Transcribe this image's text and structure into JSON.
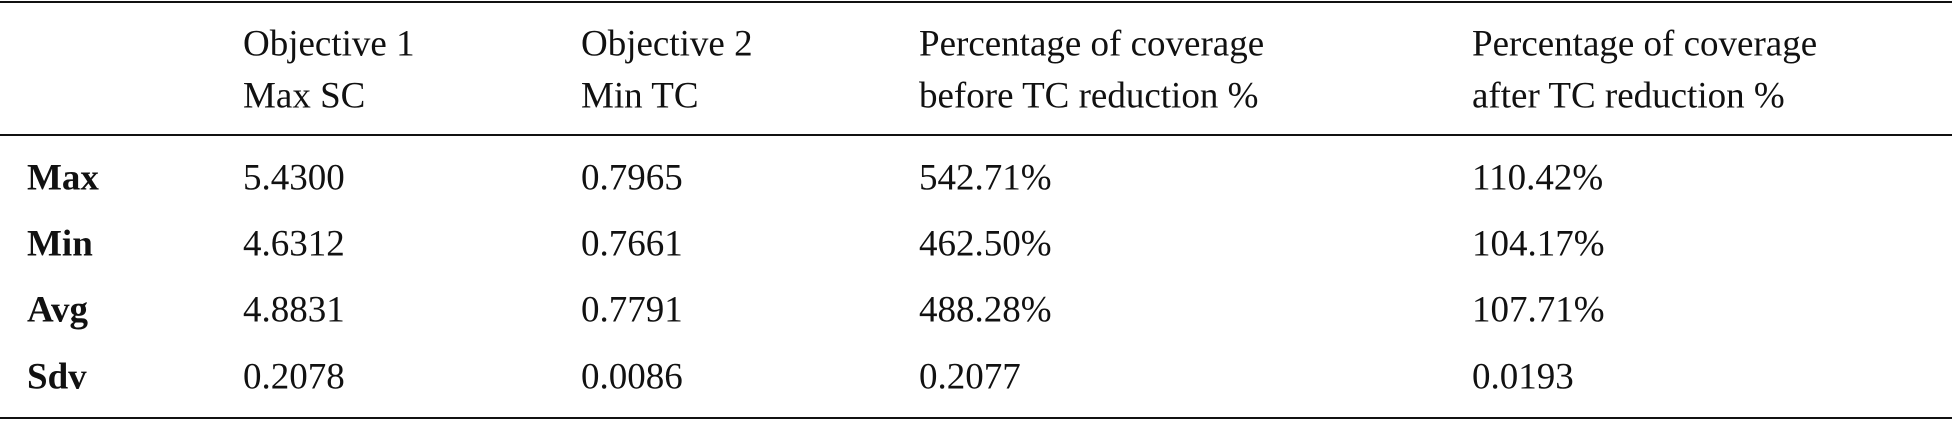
{
  "table": {
    "header": [
      [
        "Objective 1",
        "Max SC"
      ],
      [
        "Objective 2",
        "Min TC"
      ],
      [
        "Percentage of coverage",
        "before TC reduction %"
      ],
      [
        "Percentage of coverage",
        "after TC reduction %"
      ]
    ],
    "rows": [
      [
        "Max",
        "5.4300",
        "0.7965",
        "542.71%",
        "110.42%"
      ],
      [
        "Min",
        "4.6312",
        "0.7661",
        "462.50%",
        "104.17%"
      ],
      [
        "Avg",
        "4.8831",
        "0.7791",
        "488.28%",
        "107.71%"
      ],
      [
        "Sdv",
        "0.2078",
        "0.0086",
        "0.2077",
        "0.0193"
      ]
    ]
  }
}
